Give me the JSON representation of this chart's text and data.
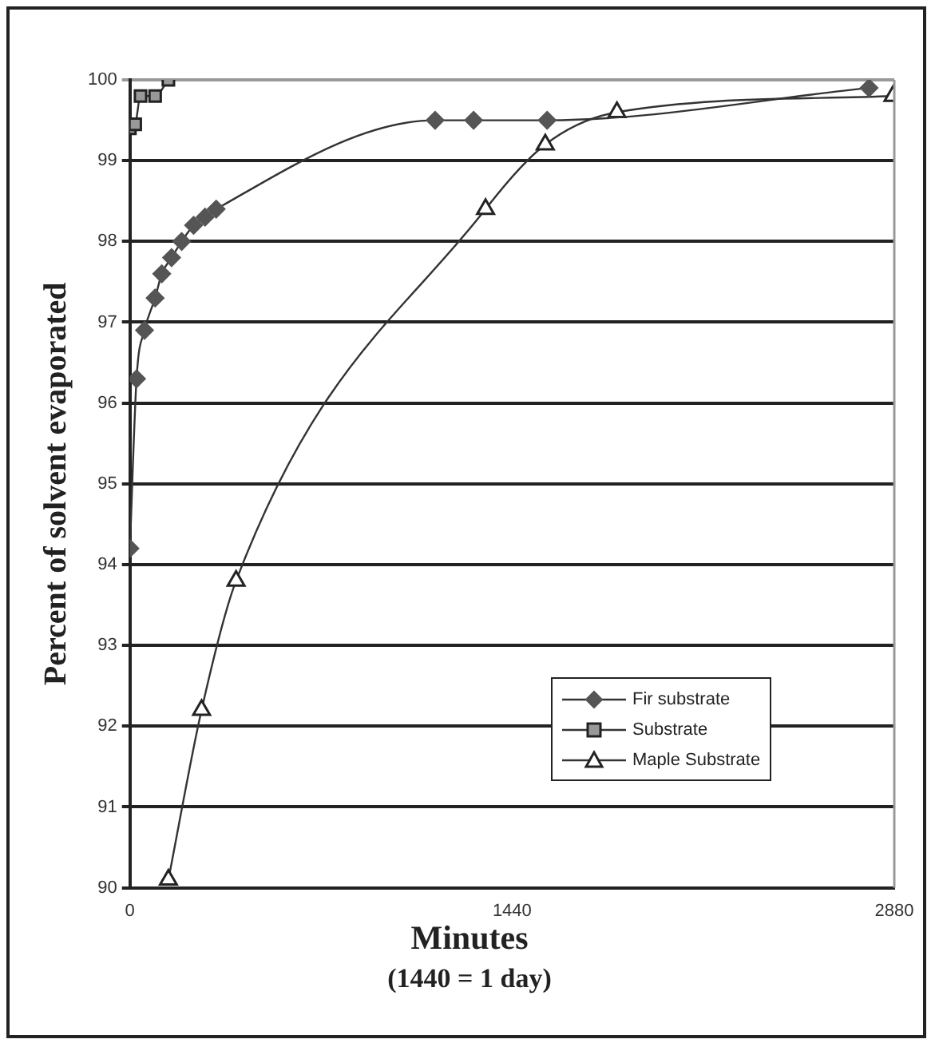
{
  "chart_data": {
    "type": "line",
    "xlabel": "Minutes",
    "ylabel": "Percent of solvent evaporated",
    "annotations": [
      "(1440 = 1 day)"
    ],
    "xlim": [
      0,
      2880
    ],
    "xticks": [
      0,
      1440,
      2880
    ],
    "ylim": [
      90,
      100
    ],
    "yticks": [
      90,
      91,
      92,
      93,
      94,
      95,
      96,
      97,
      98,
      99,
      100
    ],
    "grid": "y",
    "legend": "right",
    "series": [
      {
        "name": "Fir substrate",
        "color": "#555555",
        "marker": "diamond",
        "x": [
          0,
          25,
          55,
          95,
          120,
          157,
          195,
          240,
          283,
          325,
          1150,
          1295,
          1572,
          2785
        ],
        "values": [
          94.2,
          96.3,
          96.9,
          97.3,
          97.6,
          97.8,
          98.0,
          98.2,
          98.3,
          98.4,
          99.5,
          99.5,
          99.5,
          99.9
        ]
      },
      {
        "name": "Substrate",
        "color": "#999999",
        "marker": "square",
        "x": [
          0,
          20,
          40,
          95,
          145
        ],
        "values": [
          99.4,
          99.45,
          99.8,
          99.8,
          100
        ]
      },
      {
        "name": "Maple Substrate",
        "color": "#ffffff",
        "marker": "triangle",
        "x": [
          145,
          270,
          400,
          1340,
          1565,
          1835,
          2875
        ],
        "values": [
          90.1,
          92.2,
          93.8,
          98.4,
          99.2,
          99.6,
          99.8
        ]
      }
    ]
  }
}
